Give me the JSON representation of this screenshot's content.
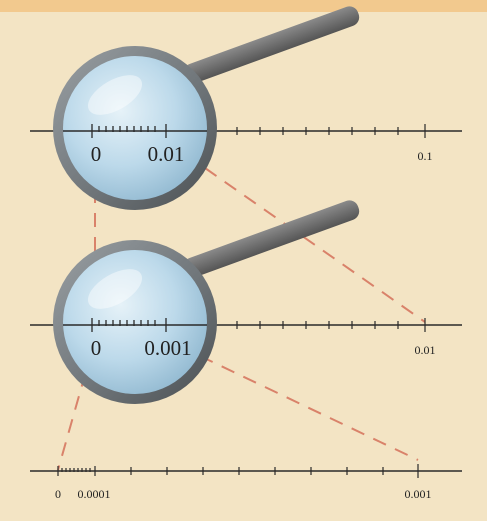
{
  "colors": {
    "background": "#f3e4c4",
    "top_band": "#f2c98e",
    "axis": "#2a2a2a",
    "lens_fill": "#bcd9ea",
    "lens_rim": "#6f7478",
    "handle": "#6e6e6e",
    "guide_dashes": "#d9826a"
  },
  "scales": [
    {
      "name": "scale-1",
      "magnified_labels": [
        "0",
        "0.01"
      ],
      "end_label": "0.1"
    },
    {
      "name": "scale-2",
      "magnified_labels": [
        "0",
        "0.001"
      ],
      "end_label": "0.01"
    },
    {
      "name": "scale-3",
      "start_labels": [
        "0",
        "0.0001"
      ],
      "end_label": "0.001"
    }
  ],
  "icons": [
    "magnifying-glass-icon"
  ]
}
